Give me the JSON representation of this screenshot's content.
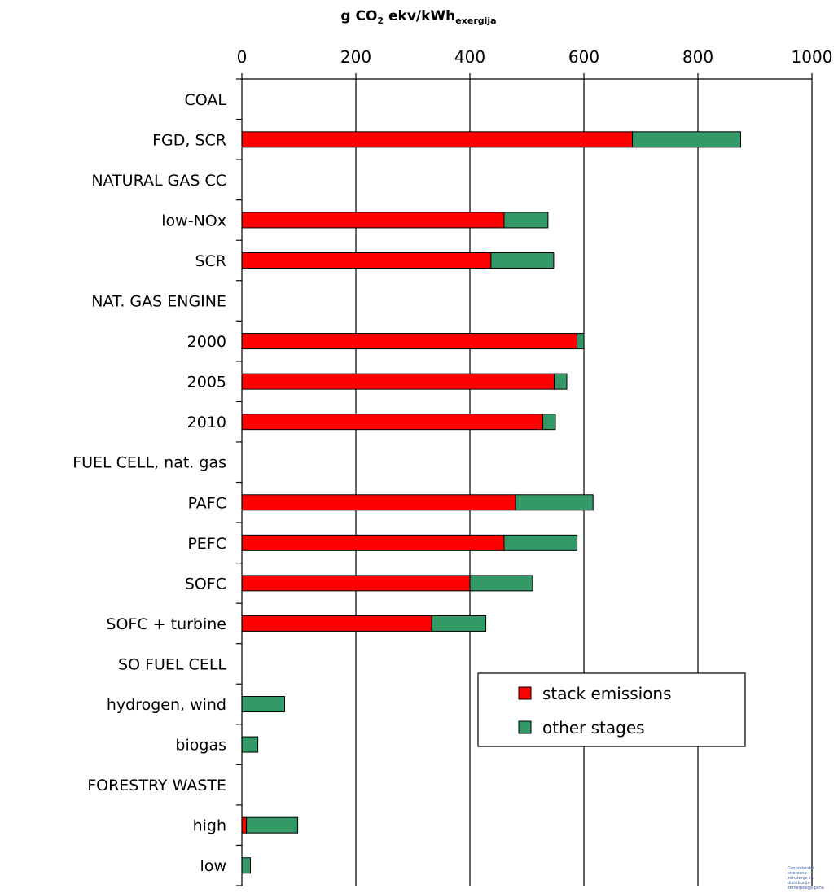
{
  "chart_data": {
    "type": "bar",
    "orientation": "horizontal",
    "stacked": true,
    "title": {
      "main": "g CO",
      "sub2": "2",
      "mid": " ekv/kWh",
      "sub": "exergija"
    },
    "xlim": [
      0,
      1000
    ],
    "xticks": [
      "0",
      "200",
      "400",
      "600",
      "800",
      "1000"
    ],
    "grid": true,
    "legend_position": "bottom-right",
    "categories": [
      "COAL",
      "FGD, SCR",
      "NATURAL GAS CC",
      "low-NOx",
      "SCR",
      "NAT. GAS ENGINE",
      "2000",
      "2005",
      "2010",
      "FUEL CELL, nat. gas",
      "PAFC",
      "PEFC",
      "SOFC",
      "SOFC + turbine",
      "SO FUEL CELL",
      "hydrogen, wind",
      "biogas",
      "FORESTRY WASTE",
      "high",
      "low"
    ],
    "series": [
      {
        "name": "stack emissions",
        "color": "#ff0000",
        "values": [
          0,
          685,
          0,
          460,
          437,
          0,
          588,
          548,
          528,
          0,
          480,
          460,
          400,
          333,
          0,
          0,
          0,
          0,
          8,
          0
        ]
      },
      {
        "name": "other stages",
        "color": "#339966",
        "values": [
          0,
          190,
          0,
          77,
          110,
          0,
          12,
          22,
          22,
          0,
          136,
          128,
          110,
          95,
          0,
          75,
          28,
          0,
          90,
          15
        ]
      }
    ]
  },
  "watermark": [
    "Gospodarsko",
    "interesno",
    "združenje za",
    "distribucijo",
    "zemeljskega plina"
  ]
}
